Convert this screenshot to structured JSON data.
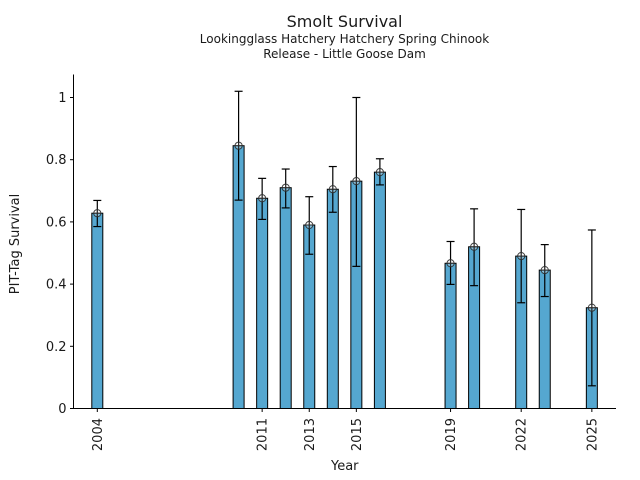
{
  "header": {
    "title": "Smolt Survival",
    "subtitle_line1": "Lookingglass Hatchery Hatchery Spring Chinook",
    "subtitle_line2": "Release - Little Goose Dam"
  },
  "chart_data": {
    "type": "bar",
    "title": "Smolt Survival",
    "subtitle": [
      "Lookingglass Hatchery Hatchery Spring Chinook",
      "Release - Little Goose Dam"
    ],
    "xlabel": "Year",
    "ylabel": "PIT-Tag Survival",
    "xlim": [
      2003,
      2026
    ],
    "ylim": [
      0,
      1.073
    ],
    "grid": false,
    "legend": "none",
    "bar_color": "#55a7d0",
    "bar_edge_color": "#000000",
    "error_bar_color": "#000000",
    "marker": "circled-plus",
    "marker_color": "#2e2e2e",
    "text_color": "#1a1a1a",
    "xticks": [
      2004,
      2011,
      2013,
      2015,
      2019,
      2022,
      2025
    ],
    "yticks": [
      0,
      0.2,
      0.4,
      0.6,
      0.8,
      1
    ],
    "series": [
      {
        "name": "PIT-Tag Survival",
        "points": [
          {
            "year": 2004,
            "value": 0.628,
            "ci_low": 0.585,
            "ci_high": 0.669
          },
          {
            "year": 2010,
            "value": 0.845,
            "ci_low": 0.67,
            "ci_high": 1.02
          },
          {
            "year": 2011,
            "value": 0.676,
            "ci_low": 0.608,
            "ci_high": 0.74
          },
          {
            "year": 2012,
            "value": 0.71,
            "ci_low": 0.645,
            "ci_high": 0.77
          },
          {
            "year": 2013,
            "value": 0.59,
            "ci_low": 0.496,
            "ci_high": 0.681
          },
          {
            "year": 2014,
            "value": 0.705,
            "ci_low": 0.631,
            "ci_high": 0.778
          },
          {
            "year": 2015,
            "value": 0.731,
            "ci_low": 0.457,
            "ci_high": 1.0
          },
          {
            "year": 2016,
            "value": 0.76,
            "ci_low": 0.719,
            "ci_high": 0.803
          },
          {
            "year": 2019,
            "value": 0.467,
            "ci_low": 0.399,
            "ci_high": 0.537
          },
          {
            "year": 2020,
            "value": 0.52,
            "ci_low": 0.395,
            "ci_high": 0.642
          },
          {
            "year": 2022,
            "value": 0.49,
            "ci_low": 0.34,
            "ci_high": 0.64
          },
          {
            "year": 2023,
            "value": 0.445,
            "ci_low": 0.36,
            "ci_high": 0.527
          },
          {
            "year": 2025,
            "value": 0.324,
            "ci_low": 0.073,
            "ci_high": 0.574
          }
        ]
      }
    ]
  }
}
